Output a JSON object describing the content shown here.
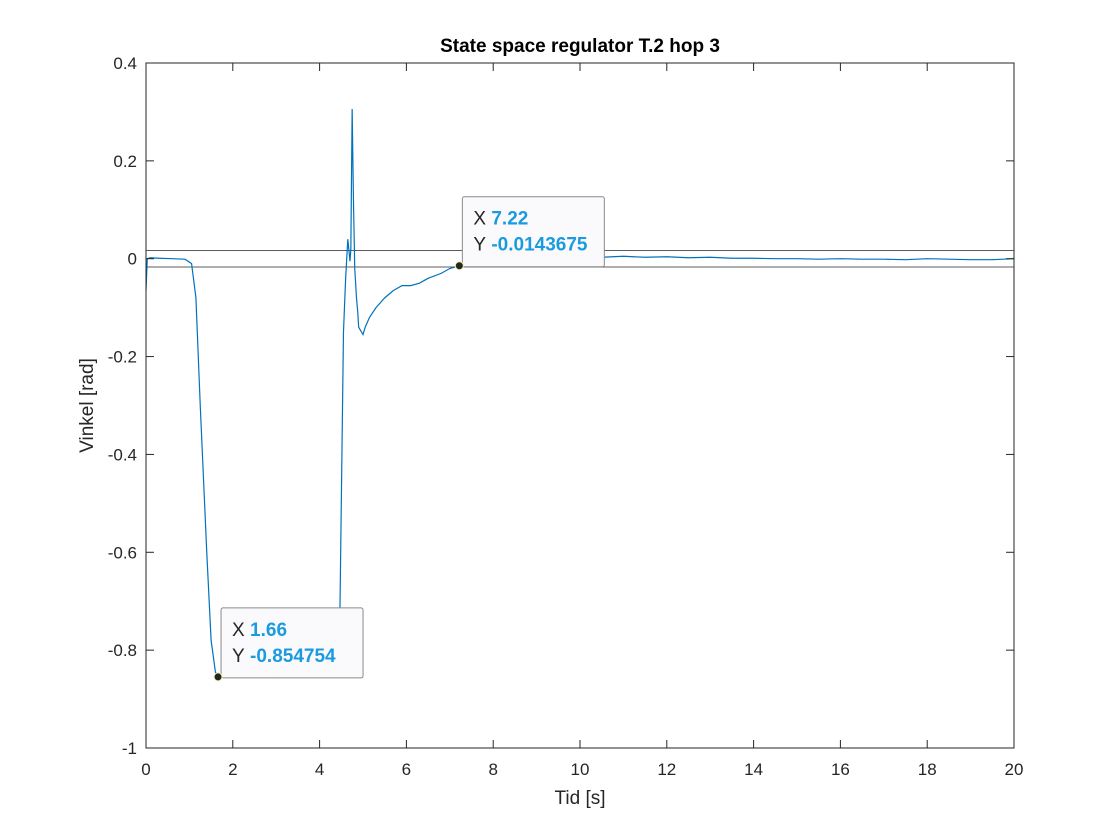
{
  "chart_data": {
    "type": "line",
    "title": "State space regulator T.2 hop 3",
    "xlabel": "Tid [s]",
    "ylabel": "Vinkel [rad]",
    "xlim": [
      0,
      20
    ],
    "ylim": [
      -1,
      0.4
    ],
    "xticks": [
      0,
      2,
      4,
      6,
      8,
      10,
      12,
      14,
      16,
      18,
      20
    ],
    "yticks": [
      0.4,
      0.2,
      0,
      -0.2,
      -0.4,
      -0.6,
      -0.8,
      -1
    ],
    "xtick_labels": [
      "0",
      "2",
      "4",
      "6",
      "8",
      "10",
      "12",
      "14",
      "16",
      "18",
      "20"
    ],
    "ytick_labels": [
      "0.4",
      "0.2",
      "0",
      "-0.2",
      "-0.4",
      "-0.6",
      "-0.8",
      "-1"
    ],
    "grid": false,
    "series": [
      {
        "color": "#0072BD",
        "x": [
          0,
          0.03,
          0.1,
          0.3,
          0.6,
          0.9,
          1.05,
          1.15,
          1.25,
          1.4,
          1.5,
          1.6,
          1.66,
          1.8,
          2.2,
          2.6,
          3.0,
          3.4,
          3.8,
          4.2,
          4.45,
          4.5,
          4.55,
          4.6,
          4.65,
          4.7,
          4.72,
          4.75,
          4.78,
          4.81,
          4.85,
          4.88,
          4.9,
          5.0,
          5.05,
          5.15,
          5.3,
          5.5,
          5.7,
          5.9,
          6.1,
          6.3,
          6.5,
          6.8,
          7.0,
          7.22,
          7.5,
          8.0,
          8.5,
          9.0,
          9.5,
          10.0,
          10.5,
          11.0,
          11.5,
          12.0,
          12.5,
          13.0,
          13.5,
          14.0,
          14.5,
          15.0,
          15.5,
          16.0,
          16.5,
          17.0,
          17.5,
          18.0,
          18.5,
          19.0,
          19.5,
          20.0
        ],
        "y": [
          -0.065,
          0.0,
          0.002,
          0.001,
          0.0,
          -0.001,
          -0.01,
          -0.08,
          -0.3,
          -0.6,
          -0.78,
          -0.845,
          -0.854754,
          -0.853,
          -0.855,
          -0.853,
          -0.856,
          -0.853,
          -0.855,
          -0.854,
          -0.85,
          -0.5,
          -0.15,
          -0.04,
          0.04,
          -0.005,
          0.02,
          0.306,
          0.12,
          -0.02,
          -0.08,
          -0.11,
          -0.14,
          -0.155,
          -0.14,
          -0.12,
          -0.1,
          -0.08,
          -0.065,
          -0.055,
          -0.055,
          -0.05,
          -0.04,
          -0.03,
          -0.02,
          -0.0143675,
          -0.006,
          0.0,
          0.002,
          0.003,
          0.004,
          0.004,
          0.003,
          0.005,
          0.003,
          0.004,
          0.002,
          0.003,
          0.001,
          0.001,
          0.0,
          0.0,
          -0.001,
          0.0,
          -0.001,
          -0.001,
          -0.002,
          0.0,
          -0.001,
          -0.002,
          -0.002,
          0.0
        ]
      }
    ],
    "reference_lines": [
      0.017,
      -0.017
    ],
    "datatips": [
      {
        "x": 7.22,
        "y": -0.0143675,
        "x_label": "X",
        "y_label": "Y",
        "x_text": "7.22",
        "y_text": "-0.0143675"
      },
      {
        "x": 1.66,
        "y": -0.854754,
        "x_label": "X",
        "y_label": "Y",
        "x_text": "1.66",
        "y_text": "-0.854754"
      }
    ]
  }
}
